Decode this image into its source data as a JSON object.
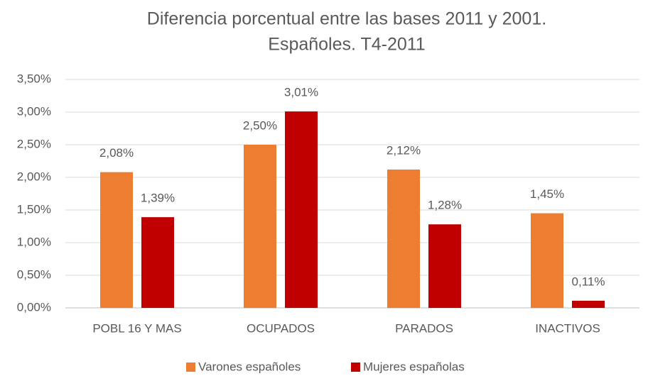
{
  "chart_data": {
    "type": "bar",
    "title": [
      "Diferencia porcentual entre las bases 2011 y 2001.",
      "Españoles.  T4-2011"
    ],
    "categories": [
      "POBL 16 Y MAS",
      "OCUPADOS",
      "PARADOS",
      "INACTIVOS"
    ],
    "series": [
      {
        "name": "Varones españoles",
        "color": "#ED7D31",
        "values": [
          2.08,
          2.5,
          2.12,
          1.45
        ],
        "value_labels": [
          "2,08%",
          "2,50%",
          "2,12%",
          "1,45%"
        ]
      },
      {
        "name": "Mujeres españolas",
        "color": "#C00000",
        "values": [
          1.39,
          3.01,
          1.28,
          0.11
        ],
        "value_labels": [
          "1,39%",
          "3,01%",
          "1,28%",
          "0,11%"
        ]
      }
    ],
    "ylim": [
      0,
      3.5
    ],
    "yticks": [
      {
        "value": 0,
        "label": "0,00%"
      },
      {
        "value": 0.5,
        "label": "0,50%"
      },
      {
        "value": 1,
        "label": "1,00%"
      },
      {
        "value": 1.5,
        "label": "1,50%"
      },
      {
        "value": 2,
        "label": "2,00%"
      },
      {
        "value": 2.5,
        "label": "2,50%"
      },
      {
        "value": 3,
        "label": "3,00%"
      },
      {
        "value": 3.5,
        "label": "3,50%"
      }
    ],
    "grid": true,
    "legend": "bottom"
  }
}
